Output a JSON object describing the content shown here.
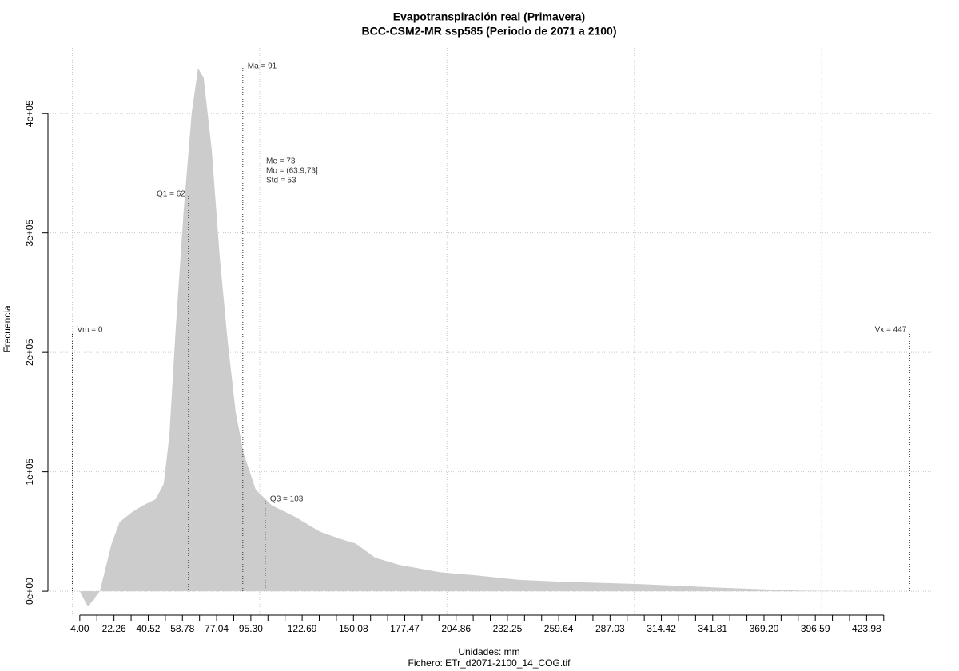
{
  "chart_data": {
    "type": "density",
    "title": "Evapotranspiración real (Primavera)",
    "subtitle": "BCC-CSM2-MR ssp585 (Periodo de 2071 a 2100)",
    "xlabel": "Unidades: mm",
    "caption": "Fichero: ETr_d2071-2100_14_COG.tif",
    "ylabel": "Frecuencia",
    "color": "#cccccc",
    "x": [
      4,
      8.3,
      14.7,
      21,
      25.3,
      31.7,
      38,
      44.5,
      48.8,
      51.8,
      55.2,
      59.5,
      63.7,
      67.1,
      70.1,
      74.4,
      78.7,
      82.9,
      87.2,
      91.5,
      97.9,
      106.4,
      119.2,
      132,
      142.7,
      151.2,
      161.8,
      174.7,
      196,
      217.3,
      238.6,
      260,
      302.6,
      345.3,
      388,
      443.4
    ],
    "values": [
      0,
      -13000,
      0,
      40000,
      58000,
      66000,
      72000,
      77000,
      90000,
      130000,
      220000,
      320000,
      400000,
      438000,
      430000,
      370000,
      280000,
      210000,
      150000,
      115000,
      85000,
      72000,
      62000,
      50000,
      44000,
      40000,
      28000,
      22000,
      16000,
      13000,
      9500,
      8000,
      6000,
      3000,
      500,
      0
    ],
    "xlim": [
      -13,
      460.5
    ],
    "ylim": [
      -20000,
      455000
    ],
    "xticks": [
      {
        "value": 4,
        "label": "4.00"
      },
      {
        "value": 22.26,
        "label": "22.26"
      },
      {
        "value": 40.52,
        "label": "40.52"
      },
      {
        "value": 58.78,
        "label": "58.78"
      },
      {
        "value": 77.04,
        "label": "77.04"
      },
      {
        "value": 95.3,
        "label": "95.30"
      },
      {
        "value": 122.69,
        "label": "122.69"
      },
      {
        "value": 150.08,
        "label": "150.08"
      },
      {
        "value": 177.47,
        "label": "177.47"
      },
      {
        "value": 204.86,
        "label": "204.86"
      },
      {
        "value": 232.25,
        "label": "232.25"
      },
      {
        "value": 259.64,
        "label": "259.64"
      },
      {
        "value": 287.03,
        "label": "287.03"
      },
      {
        "value": 314.42,
        "label": "314.42"
      },
      {
        "value": 341.81,
        "label": "341.81"
      },
      {
        "value": 369.2,
        "label": "369.20"
      },
      {
        "value": 396.59,
        "label": "396.59"
      },
      {
        "value": 423.98,
        "label": "423.98"
      }
    ],
    "xminorticks": [
      13.13,
      31.39,
      49.65,
      67.91,
      86.17,
      104.43,
      113.56,
      131.82,
      140.95,
      159.21,
      168.34,
      186.6,
      195.73,
      213.99,
      223.12,
      241.38,
      250.51,
      268.77,
      277.9,
      296.16,
      305.29,
      323.55,
      332.68,
      350.94,
      360.07,
      378.33,
      387.46,
      405.72,
      414.85,
      433.11
    ],
    "xgrid": [
      0,
      100,
      200,
      300,
      400
    ],
    "yticks": [
      {
        "value": 0,
        "label": "0e+00"
      },
      {
        "value": 100000,
        "label": "1e+05"
      },
      {
        "value": 200000,
        "label": "2e+05"
      },
      {
        "value": 300000,
        "label": "3e+05"
      },
      {
        "value": 400000,
        "label": "4e+05"
      }
    ],
    "grid": true,
    "markers": [
      {
        "label": "Vm = 0",
        "value": 0
      },
      {
        "label": "Q1 = 62",
        "value": 62
      },
      {
        "label": "Ma = 91",
        "value": 91
      },
      {
        "label": "Q3 = 103",
        "value": 103
      },
      {
        "label": "Vx = 447",
        "value": 447
      }
    ],
    "stats_text": [
      "Me = 73",
      "Mo = (63.9,73]",
      "Std = 53"
    ]
  }
}
